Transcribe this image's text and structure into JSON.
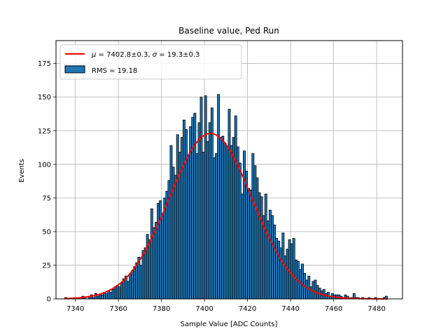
{
  "chart_data": {
    "type": "bar",
    "title": "Baseline value, Ped Run",
    "xlabel": "Sample Value [ADC Counts]",
    "ylabel": "Events",
    "xlim": [
      7331,
      7492
    ],
    "ylim": [
      0,
      192
    ],
    "xticks": [
      7340,
      7360,
      7380,
      7400,
      7420,
      7440,
      7460,
      7480
    ],
    "yticks": [
      0,
      25,
      50,
      75,
      100,
      125,
      150,
      175
    ],
    "grid": true,
    "legend_position": "top-left",
    "bin_start": 7335,
    "bin_width": 1,
    "counts": [
      1,
      0,
      0,
      0,
      1,
      0,
      0,
      0,
      2,
      1,
      0,
      2,
      3,
      1,
      4,
      2,
      3,
      3,
      5,
      4,
      6,
      5,
      7,
      9,
      10,
      9,
      12,
      15,
      17,
      13,
      18,
      21,
      24,
      27,
      31,
      25,
      36,
      38,
      48,
      44,
      67,
      53,
      57,
      71,
      73,
      62,
      75,
      80,
      88,
      114,
      98,
      92,
      122,
      109,
      120,
      133,
      126,
      107,
      128,
      135,
      138,
      108,
      131,
      150,
      109,
      151,
      117,
      131,
      142,
      105,
      108,
      152,
      120,
      121,
      116,
      113,
      141,
      114,
      120,
      136,
      113,
      101,
      78,
      110,
      95,
      82,
      81,
      108,
      99,
      90,
      79,
      76,
      62,
      78,
      58,
      66,
      62,
      55,
      45,
      43,
      38,
      49,
      32,
      37,
      44,
      41,
      45,
      29,
      28,
      22,
      26,
      19,
      14,
      17,
      9,
      13,
      14,
      10,
      8,
      6,
      7,
      4,
      5,
      2,
      4,
      3,
      3,
      3,
      2,
      1,
      3,
      2,
      0,
      1,
      4,
      1,
      1,
      0,
      1,
      0,
      0,
      1,
      0,
      0,
      1,
      0,
      0,
      0,
      1,
      2
    ]
  },
  "legend": {
    "fit_label": "$\\mu = 7402.8 \\pm 0.3, \\sigma = 19.3 \\pm 0.3$",
    "hist_label": "RMS = 19.18"
  },
  "fit": {
    "mu": 7402.8,
    "sigma": 19.3,
    "amplitude": 123
  },
  "colors": {
    "bar_fill": "#1f77b4",
    "bar_edge": "#000000",
    "fit_line": "#ff0000",
    "grid": "#b0b0b0"
  }
}
